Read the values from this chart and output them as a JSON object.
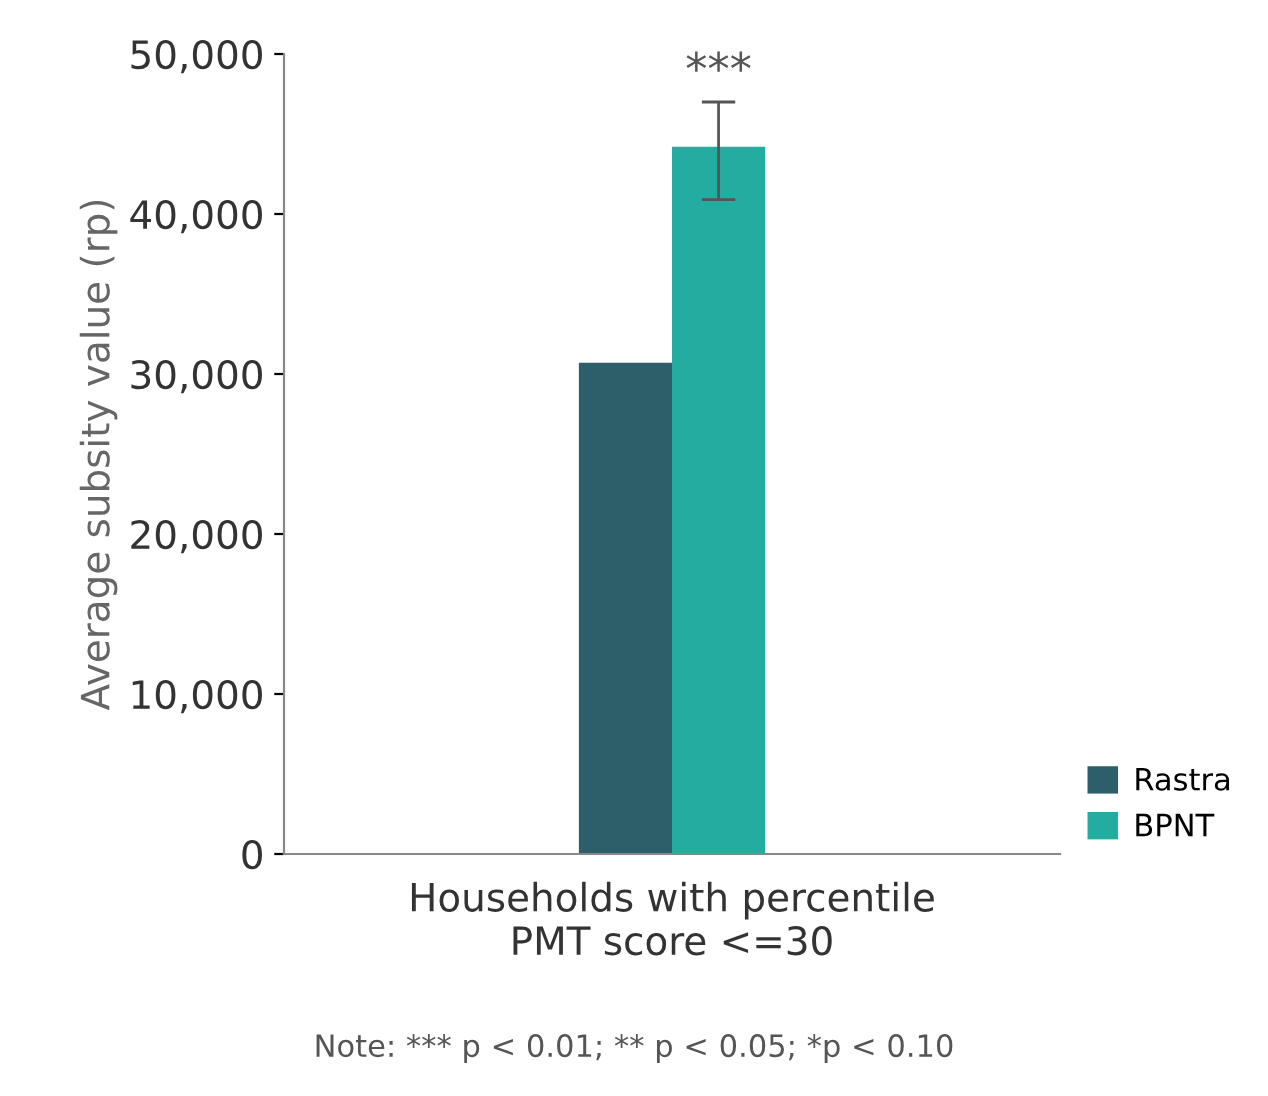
{
  "chart_data": {
    "type": "bar",
    "ylabel": "Average subsity value (rp)",
    "categories": [
      "Households with percentile\nPMT score <=30"
    ],
    "series": [
      {
        "name": "Rastra",
        "color": "#2d5f6b",
        "values": [
          30700
        ]
      },
      {
        "name": "BPNT",
        "color": "#23ada0",
        "values": [
          44200
        ],
        "errors": [
          [
            40900,
            47000
          ]
        ]
      }
    ],
    "ylim": [
      0,
      50000
    ],
    "yticks": [
      {
        "value": 0,
        "label": "0"
      },
      {
        "value": 10000,
        "label": "10,000"
      },
      {
        "value": 20000,
        "label": "20,000"
      },
      {
        "value": 30000,
        "label": "30,000"
      },
      {
        "value": 40000,
        "label": "40,000"
      },
      {
        "value": 50000,
        "label": "50,000"
      }
    ],
    "annotations": [
      "***",
      "Note: *** p < 0.01; ** p < 0.05; *p < 0.10"
    ],
    "legend": "bottom right",
    "grid": false
  }
}
